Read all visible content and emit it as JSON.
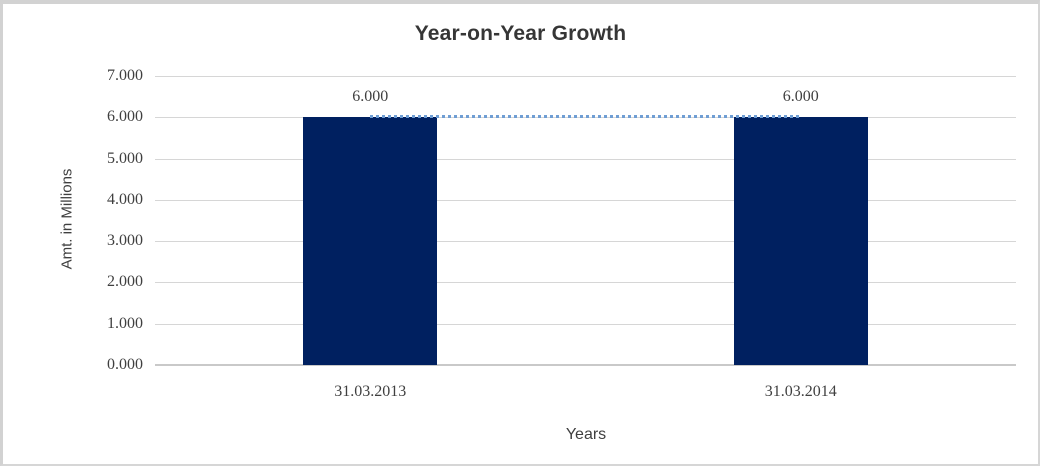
{
  "chart": {
    "title": "Year-on-Year Growth",
    "y_axis_title": "Amt. in Millions",
    "x_axis_title": "Years"
  },
  "chart_data": {
    "type": "bar",
    "title": "Year-on-Year Growth",
    "xlabel": "Years",
    "ylabel": "Amt. in Millions",
    "categories": [
      "31.03.2013",
      "31.03.2014"
    ],
    "values": [
      6,
      6
    ],
    "data_labels": [
      "6.000",
      "6.000"
    ],
    "ytick_labels": [
      "0.000",
      "1.000",
      "2.000",
      "3.000",
      "4.000",
      "5.000",
      "6.000",
      "7.000"
    ],
    "ylim": [
      0,
      7
    ],
    "grid": "horizontal",
    "legend": "none",
    "connector_line": {
      "style": "dotted",
      "color": "#6f9ed4",
      "values": [
        6,
        6
      ],
      "note": "dotted line joining the tops of the two bars"
    },
    "colors": {
      "bar": "#002060",
      "gridline": "#d6d6d6",
      "axis_line": "#c9c9c9",
      "text": "#3f3f3f",
      "title_text": "#363636",
      "frame_border": "#d2d2d2",
      "background": "#ffffff"
    }
  }
}
